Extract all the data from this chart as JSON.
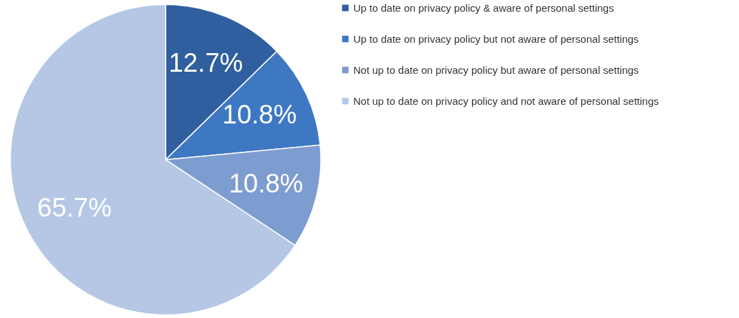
{
  "chart_data": {
    "type": "pie",
    "categories": [
      "Up to date on privacy policy & aware of personal settings",
      "Up to date on privacy policy but not aware of personal settings",
      "Not up to date on privacy policy but aware of personal settings",
      "Not up to date on privacy policy and not aware of personal settings"
    ],
    "values": [
      12.7,
      10.8,
      10.8,
      65.7
    ],
    "colors": [
      "#2f5f9e",
      "#3f78c2",
      "#7d9cd0",
      "#b5c7e5"
    ],
    "value_labels": [
      "12.7%",
      "10.8%",
      "10.8%",
      "65.7%"
    ],
    "legend": "right"
  }
}
